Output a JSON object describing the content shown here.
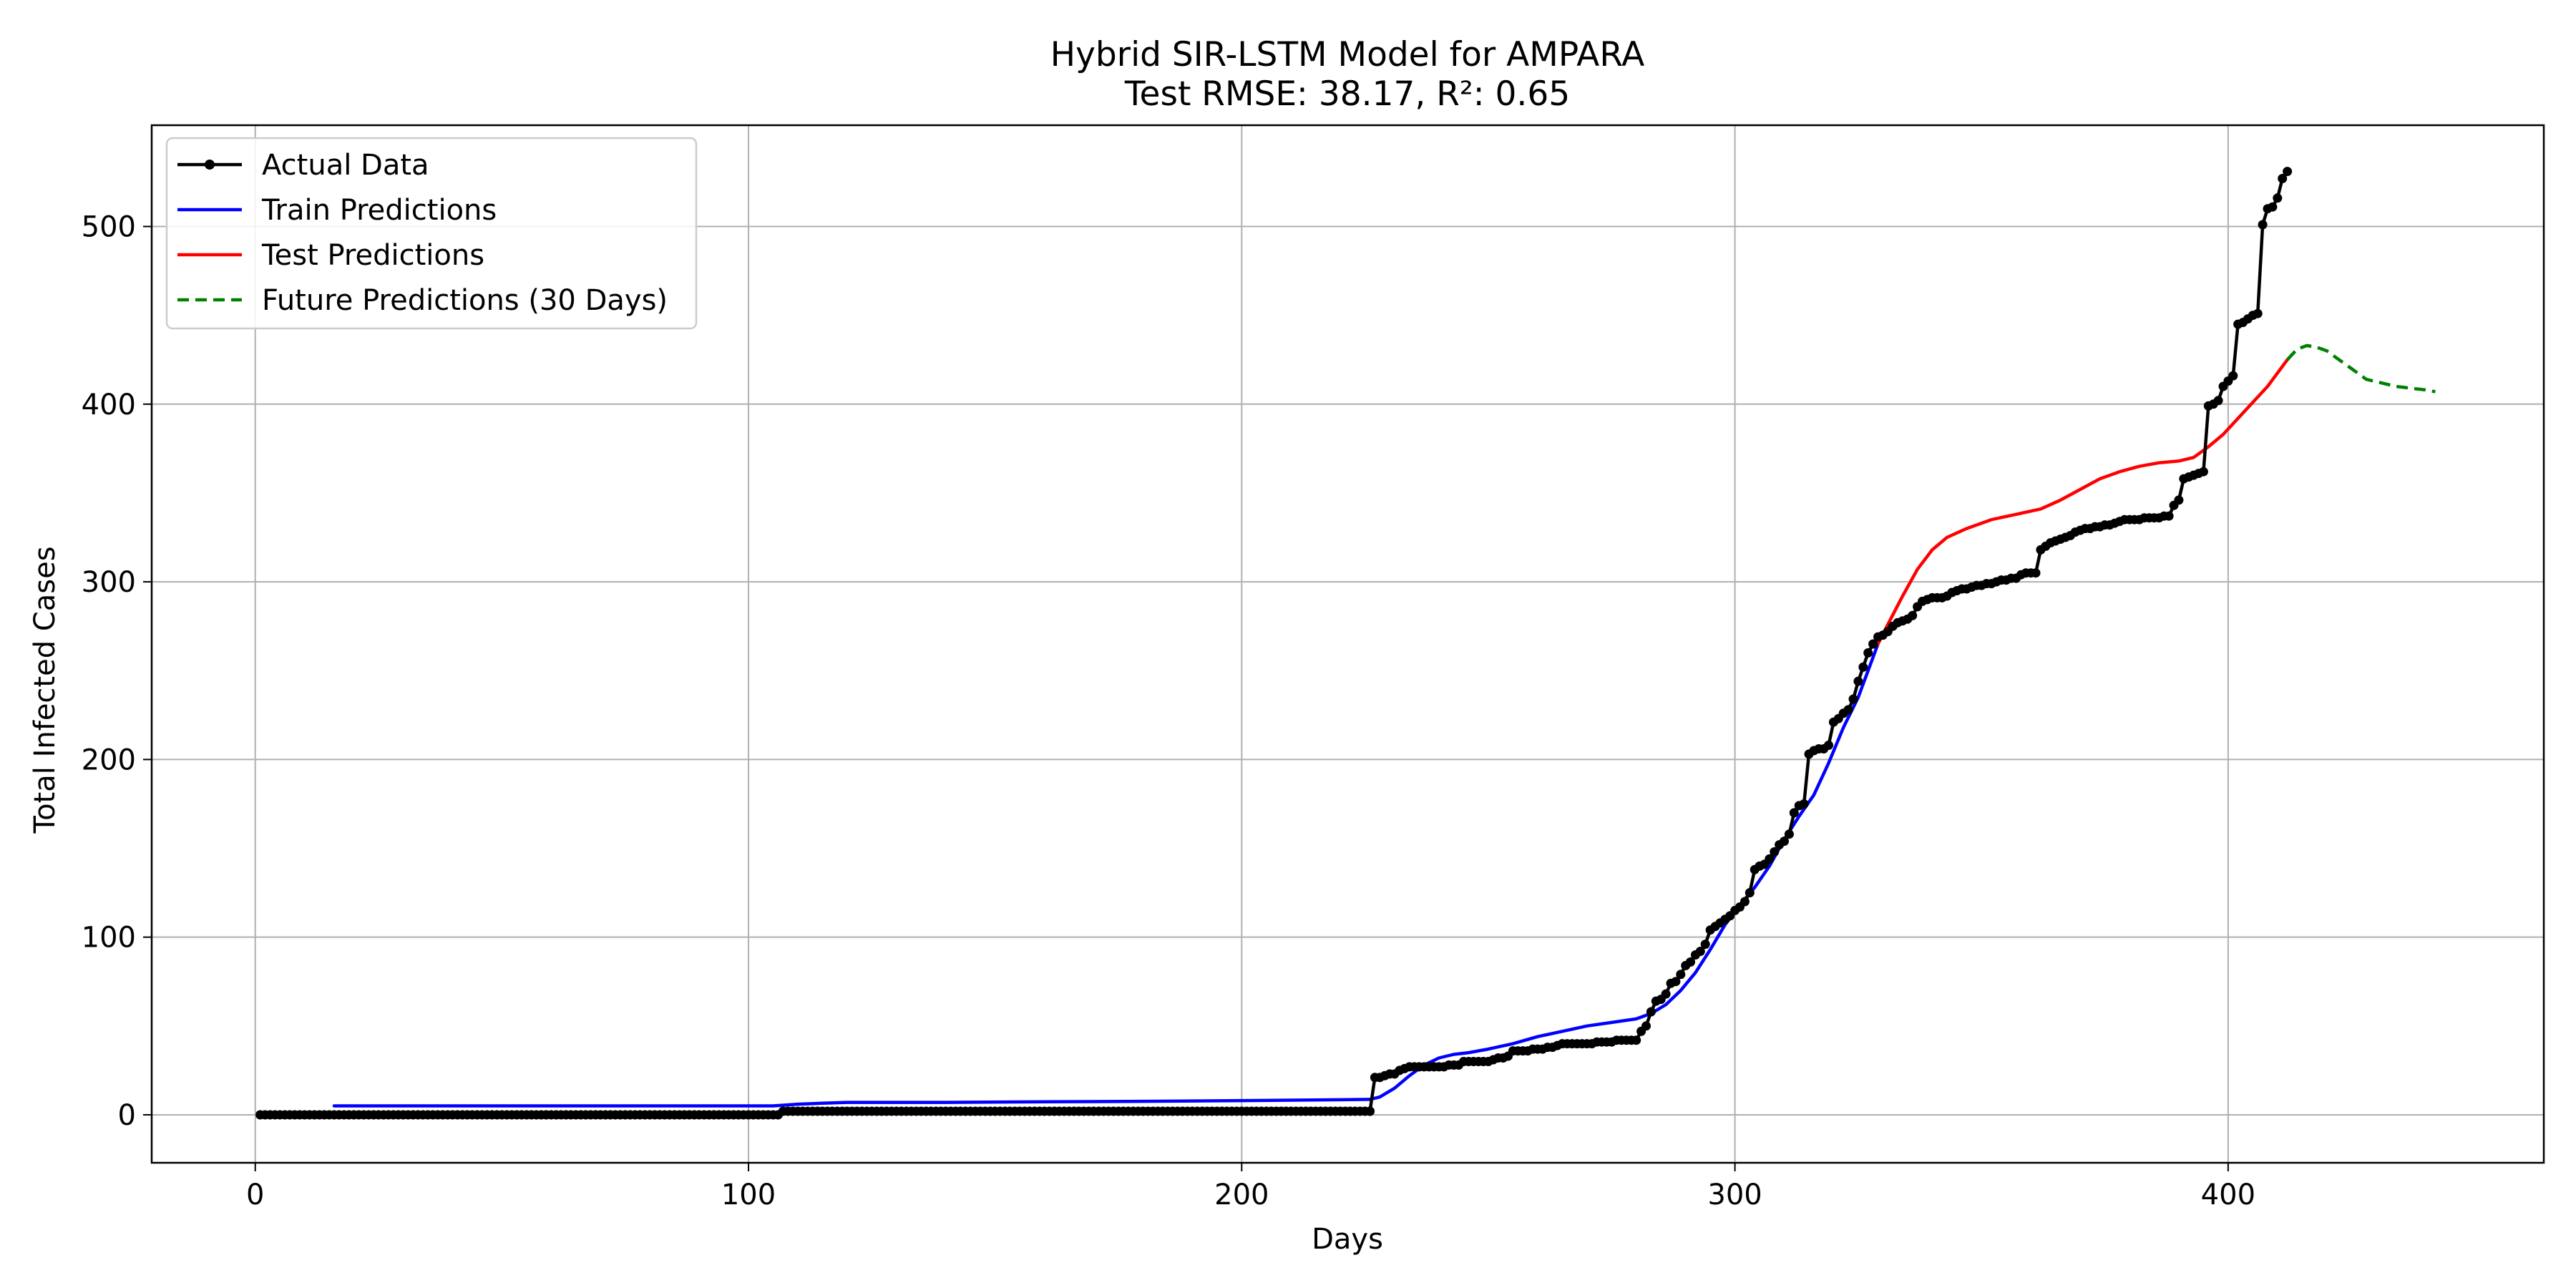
{
  "chart_data": {
    "type": "line",
    "title": "Hybrid SIR-LSTM Model for AMPARA",
    "subtitle": "Test RMSE: 38.17, R²: 0.65",
    "xlabel": "Days",
    "ylabel": "Total Infected Cases",
    "xlim": [
      -21,
      464
    ],
    "ylim": [
      -27,
      557
    ],
    "xticks": [
      0,
      100,
      200,
      300,
      400
    ],
    "yticks": [
      0,
      100,
      200,
      300,
      400,
      500
    ],
    "grid": true,
    "legend_position": "upper-left",
    "colors": {
      "actual": "#000000",
      "train": "#0000ff",
      "test": "#ff0000",
      "future": "#008000",
      "grid": "#b0b0b0"
    },
    "series": [
      {
        "name": "Actual Data",
        "style": "line-with-markers",
        "color": "#000000",
        "segments": [
          {
            "x_start": 1,
            "x_end": 106,
            "y": 0
          },
          {
            "x_start": 107,
            "x_end": 226,
            "y": 2
          }
        ],
        "points": [
          [
            226,
            2
          ],
          [
            227,
            21
          ],
          [
            228,
            21
          ],
          [
            229,
            22
          ],
          [
            230,
            23
          ],
          [
            231,
            23
          ],
          [
            232,
            25
          ],
          [
            233,
            26
          ],
          [
            234,
            27
          ],
          [
            235,
            27
          ],
          [
            236,
            27
          ],
          [
            237,
            27
          ],
          [
            238,
            27
          ],
          [
            239,
            27
          ],
          [
            240,
            27
          ],
          [
            241,
            27
          ],
          [
            242,
            28
          ],
          [
            243,
            28
          ],
          [
            244,
            28
          ],
          [
            245,
            30
          ],
          [
            246,
            30
          ],
          [
            247,
            30
          ],
          [
            248,
            30
          ],
          [
            249,
            30
          ],
          [
            250,
            30
          ],
          [
            251,
            31
          ],
          [
            252,
            32
          ],
          [
            253,
            32
          ],
          [
            254,
            33
          ],
          [
            255,
            36
          ],
          [
            256,
            36
          ],
          [
            257,
            36
          ],
          [
            258,
            36
          ],
          [
            259,
            37
          ],
          [
            260,
            37
          ],
          [
            261,
            37
          ],
          [
            262,
            38
          ],
          [
            263,
            38
          ],
          [
            264,
            39
          ],
          [
            265,
            40
          ],
          [
            266,
            40
          ],
          [
            267,
            40
          ],
          [
            268,
            40
          ],
          [
            269,
            40
          ],
          [
            270,
            40
          ],
          [
            271,
            40
          ],
          [
            272,
            41
          ],
          [
            273,
            41
          ],
          [
            274,
            41
          ],
          [
            275,
            41
          ],
          [
            276,
            42
          ],
          [
            277,
            42
          ],
          [
            278,
            42
          ],
          [
            279,
            42
          ],
          [
            280,
            42
          ],
          [
            281,
            47
          ],
          [
            282,
            50
          ],
          [
            283,
            58
          ],
          [
            284,
            64
          ],
          [
            285,
            65
          ],
          [
            286,
            68
          ],
          [
            287,
            74
          ],
          [
            288,
            75
          ],
          [
            289,
            79
          ],
          [
            290,
            84
          ],
          [
            291,
            86
          ],
          [
            292,
            90
          ],
          [
            293,
            92
          ],
          [
            294,
            96
          ],
          [
            295,
            104
          ],
          [
            296,
            106
          ],
          [
            297,
            108
          ],
          [
            298,
            110
          ],
          [
            299,
            112
          ],
          [
            300,
            115
          ],
          [
            301,
            117
          ],
          [
            302,
            120
          ],
          [
            303,
            125
          ],
          [
            304,
            138
          ],
          [
            305,
            140
          ],
          [
            306,
            141
          ],
          [
            307,
            144
          ],
          [
            308,
            148
          ],
          [
            309,
            152
          ],
          [
            310,
            154
          ],
          [
            311,
            158
          ],
          [
            312,
            170
          ],
          [
            313,
            174
          ],
          [
            314,
            175
          ],
          [
            315,
            203
          ],
          [
            316,
            205
          ],
          [
            317,
            206
          ],
          [
            318,
            206
          ],
          [
            319,
            208
          ],
          [
            320,
            221
          ],
          [
            321,
            223
          ],
          [
            322,
            226
          ],
          [
            323,
            228
          ],
          [
            324,
            234
          ],
          [
            325,
            244
          ],
          [
            326,
            252
          ],
          [
            327,
            260
          ],
          [
            328,
            265
          ],
          [
            329,
            269
          ],
          [
            330,
            270
          ],
          [
            331,
            272
          ],
          [
            332,
            275
          ],
          [
            333,
            277
          ],
          [
            334,
            278
          ],
          [
            335,
            279
          ],
          [
            336,
            281
          ],
          [
            337,
            286
          ],
          [
            338,
            289
          ],
          [
            339,
            290
          ],
          [
            340,
            291
          ],
          [
            341,
            291
          ],
          [
            342,
            291
          ],
          [
            343,
            292
          ],
          [
            344,
            294
          ],
          [
            345,
            295
          ],
          [
            346,
            296
          ],
          [
            347,
            296
          ],
          [
            348,
            297
          ],
          [
            349,
            298
          ],
          [
            350,
            298
          ],
          [
            351,
            299
          ],
          [
            352,
            299
          ],
          [
            353,
            300
          ],
          [
            354,
            301
          ],
          [
            355,
            301
          ],
          [
            356,
            302
          ],
          [
            357,
            302
          ],
          [
            358,
            304
          ],
          [
            359,
            305
          ],
          [
            360,
            305
          ],
          [
            361,
            305
          ],
          [
            362,
            318
          ],
          [
            363,
            320
          ],
          [
            364,
            322
          ],
          [
            365,
            323
          ],
          [
            366,
            324
          ],
          [
            367,
            325
          ],
          [
            368,
            326
          ],
          [
            369,
            328
          ],
          [
            370,
            329
          ],
          [
            371,
            330
          ],
          [
            372,
            330
          ],
          [
            373,
            331
          ],
          [
            374,
            331
          ],
          [
            375,
            332
          ],
          [
            376,
            332
          ],
          [
            377,
            333
          ],
          [
            378,
            334
          ],
          [
            379,
            335
          ],
          [
            380,
            335
          ],
          [
            381,
            335
          ],
          [
            382,
            335
          ],
          [
            383,
            336
          ],
          [
            384,
            336
          ],
          [
            385,
            336
          ],
          [
            386,
            336
          ],
          [
            387,
            337
          ],
          [
            388,
            337
          ],
          [
            389,
            343
          ],
          [
            390,
            346
          ],
          [
            391,
            358
          ],
          [
            392,
            359
          ],
          [
            393,
            360
          ],
          [
            394,
            361
          ],
          [
            395,
            362
          ],
          [
            396,
            399
          ],
          [
            397,
            400
          ],
          [
            398,
            402
          ],
          [
            399,
            410
          ],
          [
            400,
            413
          ],
          [
            401,
            416
          ],
          [
            402,
            445
          ],
          [
            403,
            446
          ],
          [
            404,
            448
          ],
          [
            405,
            450
          ],
          [
            406,
            451
          ],
          [
            407,
            501
          ],
          [
            408,
            510
          ],
          [
            409,
            511
          ],
          [
            410,
            516
          ],
          [
            411,
            527
          ],
          [
            412,
            531
          ]
        ]
      },
      {
        "name": "Train Predictions",
        "color": "#0000ff",
        "points": [
          [
            16,
            5
          ],
          [
            100,
            5
          ],
          [
            105,
            5
          ],
          [
            110,
            6
          ],
          [
            115,
            6.5
          ],
          [
            120,
            7
          ],
          [
            140,
            7
          ],
          [
            160,
            7.3
          ],
          [
            180,
            7.6
          ],
          [
            200,
            8
          ],
          [
            220,
            8.5
          ],
          [
            226,
            8.7
          ],
          [
            228,
            10
          ],
          [
            231,
            15
          ],
          [
            234,
            22
          ],
          [
            237,
            28
          ],
          [
            240,
            32
          ],
          [
            243,
            34
          ],
          [
            246,
            35
          ],
          [
            250,
            37
          ],
          [
            255,
            40
          ],
          [
            260,
            44
          ],
          [
            265,
            47
          ],
          [
            270,
            50
          ],
          [
            275,
            52
          ],
          [
            280,
            54
          ],
          [
            283,
            57
          ],
          [
            286,
            62
          ],
          [
            289,
            70
          ],
          [
            292,
            80
          ],
          [
            295,
            93
          ],
          [
            298,
            107
          ],
          [
            301,
            118
          ],
          [
            304,
            128
          ],
          [
            307,
            140
          ],
          [
            310,
            155
          ],
          [
            313,
            168
          ],
          [
            316,
            180
          ],
          [
            319,
            198
          ],
          [
            322,
            218
          ],
          [
            325,
            235
          ],
          [
            327,
            250
          ],
          [
            329,
            265
          ]
        ]
      },
      {
        "name": "Test Predictions",
        "color": "#ff0000",
        "points": [
          [
            329,
            265
          ],
          [
            331,
            276
          ],
          [
            334,
            292
          ],
          [
            337,
            307
          ],
          [
            340,
            318
          ],
          [
            343,
            325
          ],
          [
            347,
            330
          ],
          [
            352,
            335
          ],
          [
            357,
            338
          ],
          [
            362,
            341
          ],
          [
            366,
            346
          ],
          [
            370,
            352
          ],
          [
            374,
            358
          ],
          [
            378,
            362
          ],
          [
            382,
            365
          ],
          [
            386,
            367
          ],
          [
            390,
            368
          ],
          [
            393,
            370
          ],
          [
            396,
            376
          ],
          [
            399,
            383
          ],
          [
            402,
            392
          ],
          [
            405,
            401
          ],
          [
            408,
            410
          ],
          [
            412,
            425
          ]
        ]
      },
      {
        "name": "Future Predictions (30 Days)",
        "color": "#008000",
        "style": "dashed",
        "points": [
          [
            412,
            425
          ],
          [
            414,
            431
          ],
          [
            416,
            433
          ],
          [
            418,
            432
          ],
          [
            420,
            430
          ],
          [
            422,
            426
          ],
          [
            424,
            422
          ],
          [
            426,
            418
          ],
          [
            428,
            414
          ],
          [
            431,
            412
          ],
          [
            434,
            410
          ],
          [
            437,
            409
          ],
          [
            440,
            408
          ],
          [
            442,
            407
          ]
        ]
      }
    ]
  }
}
